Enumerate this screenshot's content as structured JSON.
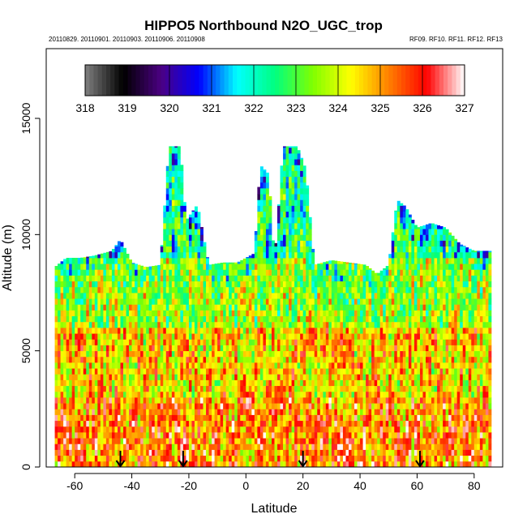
{
  "chart_data": {
    "type": "heatmap",
    "title": "HIPPO5 Northbound N2O_UGC_trop",
    "subtitle_left": "20110829. 20110901. 20110903. 20110906. 20110908",
    "subtitle_right": "RF09. RF10. RF11. RF12. RF13",
    "xlabel": "Latitude",
    "ylabel": "Altitude (m)",
    "xlim": [
      -70,
      90
    ],
    "ylim": [
      0,
      18000
    ],
    "xticks": [
      -60,
      -40,
      -20,
      0,
      20,
      40,
      60,
      80
    ],
    "yticks": [
      0,
      5000,
      10000,
      15000
    ],
    "colorbar": {
      "min": 318,
      "max": 327,
      "ticks": [
        318,
        319,
        320,
        321,
        322,
        323,
        324,
        325,
        326,
        327
      ],
      "placement": "top, inside plot area",
      "stops": [
        "#808080",
        "#000000",
        "#4b0082",
        "#0000ff",
        "#00ffff",
        "#00ff80",
        "#80ff00",
        "#ffff00",
        "#ff8000",
        "#ff0000",
        "#ffffff"
      ]
    },
    "profile_markers_lat": [
      -44,
      -22,
      20,
      61
    ],
    "vertical_extent": [
      {
        "lat": -67,
        "top": 8600
      },
      {
        "lat": -63,
        "top": 9000
      },
      {
        "lat": -58,
        "top": 9000
      },
      {
        "lat": -53,
        "top": 9100
      },
      {
        "lat": -47,
        "top": 9300
      },
      {
        "lat": -44,
        "top": 9800
      },
      {
        "lat": -40,
        "top": 8800
      },
      {
        "lat": -35,
        "top": 8600
      },
      {
        "lat": -30,
        "top": 8700
      },
      {
        "lat": -27,
        "top": 13800
      },
      {
        "lat": -23,
        "top": 13800
      },
      {
        "lat": -21,
        "top": 10600
      },
      {
        "lat": -17,
        "top": 11300
      },
      {
        "lat": -13,
        "top": 8700
      },
      {
        "lat": -8,
        "top": 8800
      },
      {
        "lat": -3,
        "top": 8800
      },
      {
        "lat": 3,
        "top": 9200
      },
      {
        "lat": 5,
        "top": 13000
      },
      {
        "lat": 8,
        "top": 12600
      },
      {
        "lat": 10,
        "top": 8800
      },
      {
        "lat": 13,
        "top": 13800
      },
      {
        "lat": 18,
        "top": 13800
      },
      {
        "lat": 21,
        "top": 12800
      },
      {
        "lat": 24,
        "top": 8700
      },
      {
        "lat": 30,
        "top": 8900
      },
      {
        "lat": 36,
        "top": 8800
      },
      {
        "lat": 42,
        "top": 8700
      },
      {
        "lat": 46,
        "top": 8300
      },
      {
        "lat": 50,
        "top": 8700
      },
      {
        "lat": 53,
        "top": 11500
      },
      {
        "lat": 56,
        "top": 11200
      },
      {
        "lat": 60,
        "top": 10300
      },
      {
        "lat": 65,
        "top": 10500
      },
      {
        "lat": 70,
        "top": 10300
      },
      {
        "lat": 75,
        "top": 9600
      },
      {
        "lat": 80,
        "top": 9300
      },
      {
        "lat": 84,
        "top": 9300
      },
      {
        "lat": 86,
        "top": 9300
      }
    ],
    "value_regime_by_altitude": [
      {
        "alt_range": [
          0,
          3000
        ],
        "typical": 325.2
      },
      {
        "alt_range": [
          3000,
          6000
        ],
        "typical": 324.6
      },
      {
        "alt_range": [
          6000,
          9000
        ],
        "typical": 323.6
      },
      {
        "alt_range": [
          9000,
          14000
        ],
        "typical": 322.4
      }
    ]
  }
}
